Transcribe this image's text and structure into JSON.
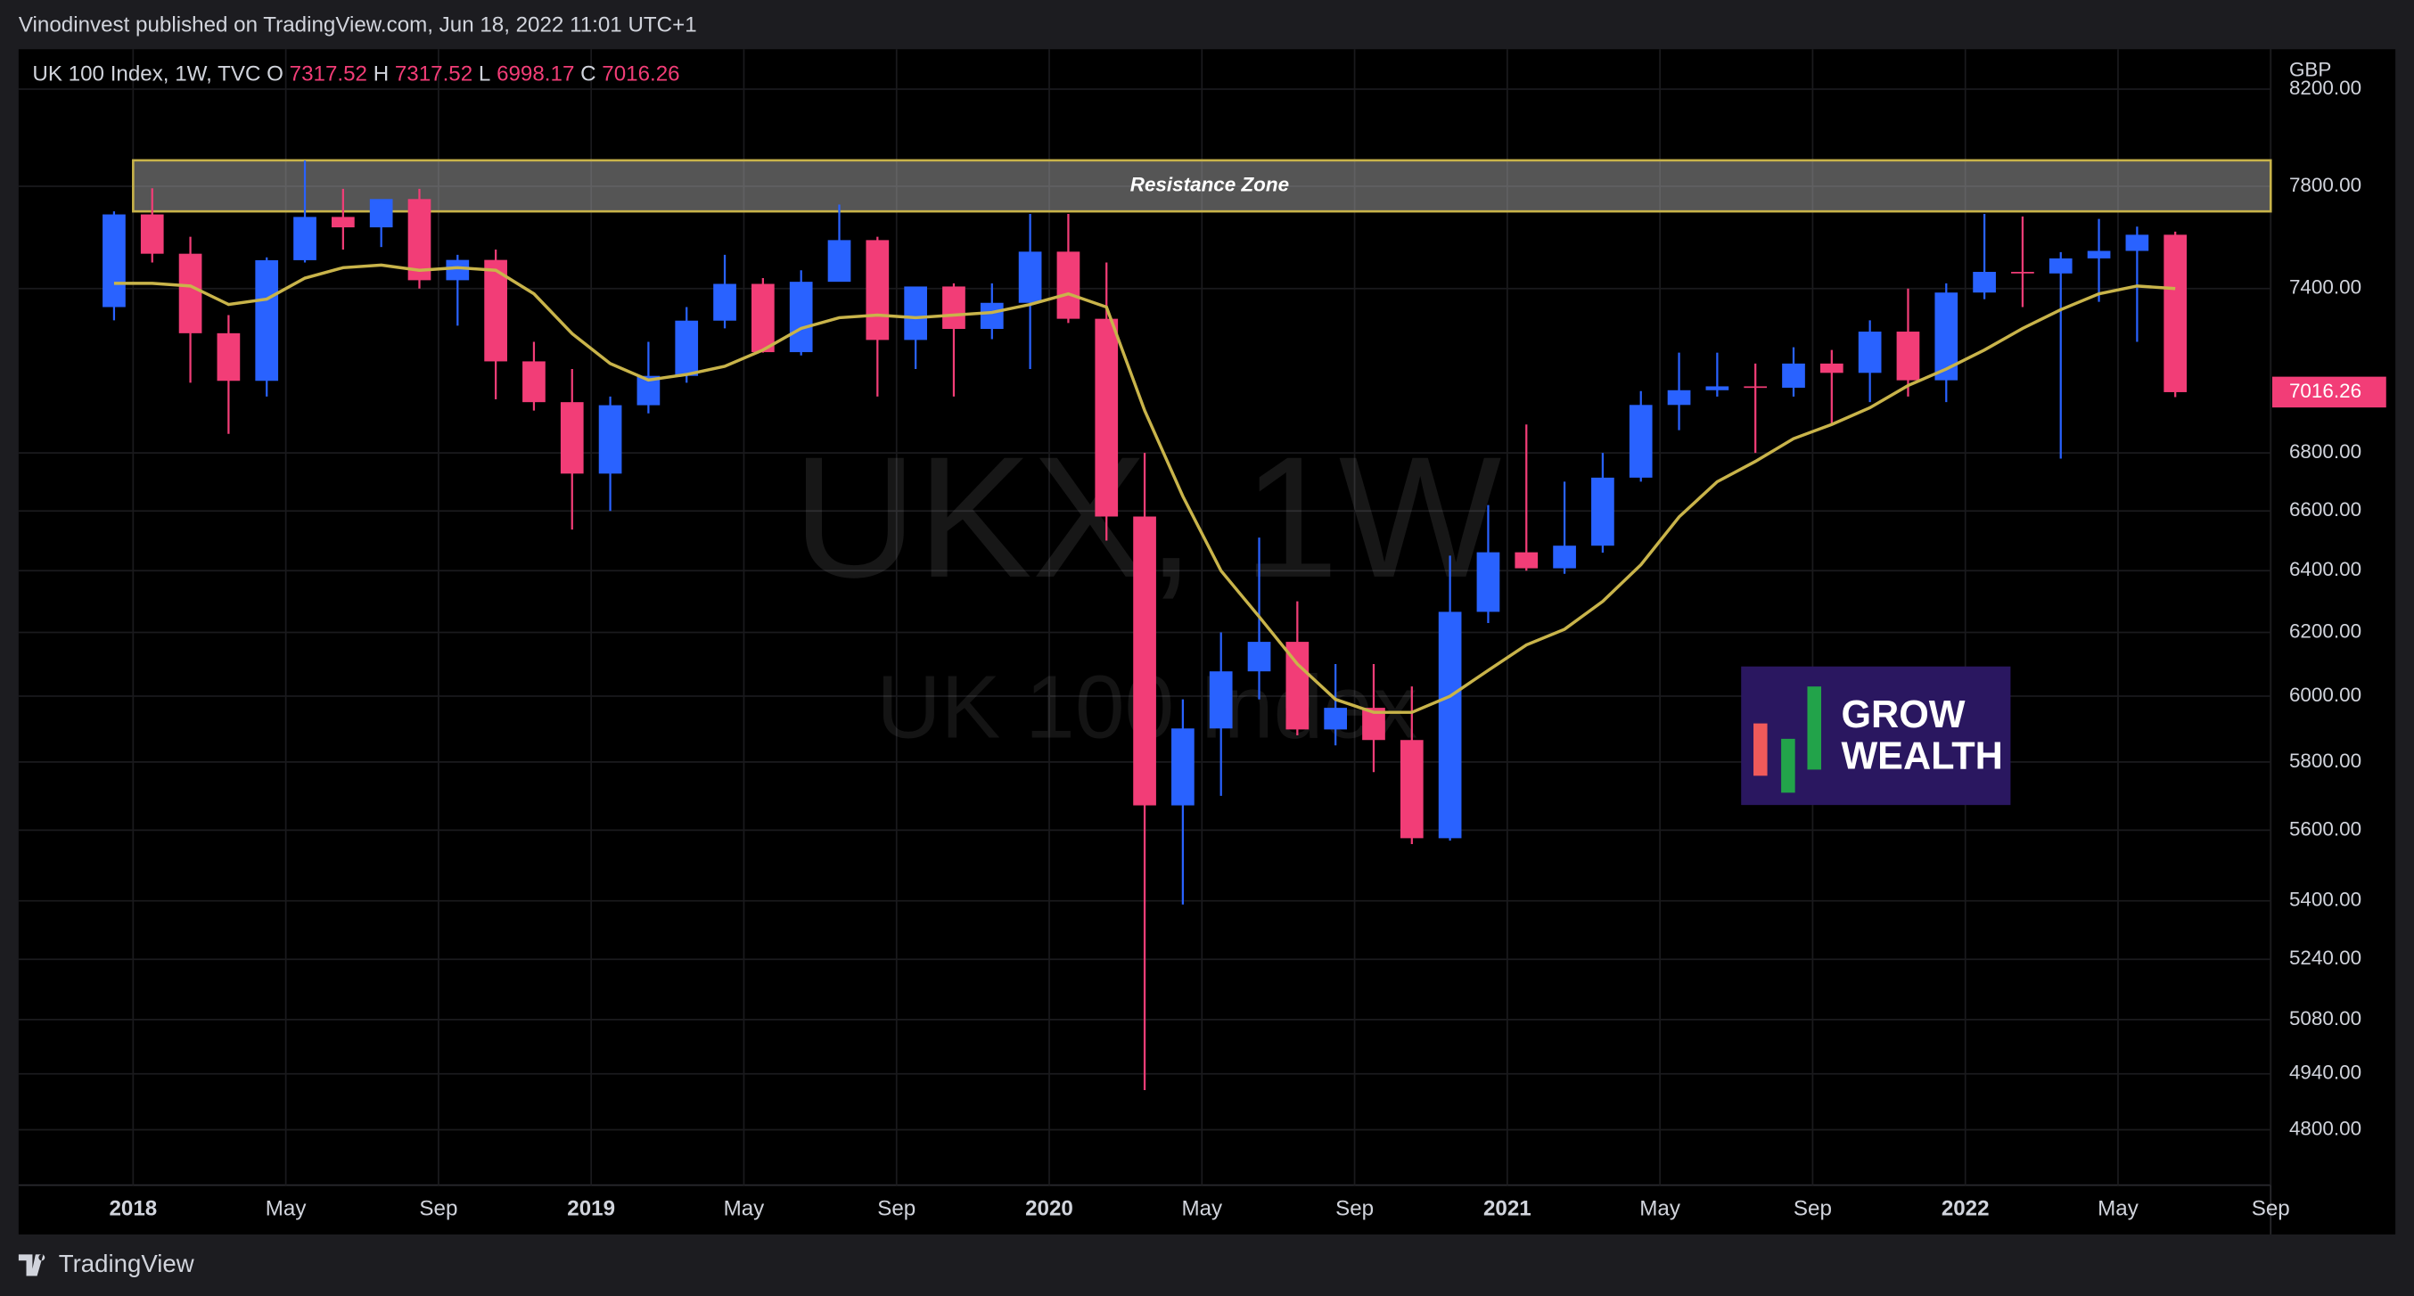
{
  "header": "Vinodinvest published on TradingView.com, Jun 18, 2022 11:01 UTC+1",
  "footer": "TradingView",
  "chart_data": {
    "type": "candlestick",
    "legend": {
      "symbol": "UK 100 Index, 1W, TVC",
      "fields": [
        {
          "label": "O",
          "value": 7317.52
        },
        {
          "label": "H",
          "value": 7317.52
        },
        {
          "label": "L",
          "value": 6998.17
        },
        {
          "label": "C",
          "value": 7016.26
        }
      ]
    },
    "watermark": {
      "symbol": "UKX, 1W",
      "name": "UK 100 Index"
    },
    "currency": "GBP",
    "price_line": {
      "value": 7016.26,
      "label": "7016.26"
    },
    "resistance_zone": {
      "label": "Resistance Zone",
      "range": [
        7700,
        7905
      ],
      "start": "2018-01"
    },
    "logo": {
      "line1": "GROW",
      "line2": "WEALTH"
    },
    "up_color": "#2962ff",
    "down_color": "#f23d77",
    "log_scale": true,
    "grid": true,
    "xlim": [
      "2017-10",
      "2022-09"
    ],
    "xticks": [
      {
        "value": "2018-01",
        "label": "2018"
      },
      {
        "value": "2018-05",
        "label": "May"
      },
      {
        "value": "2018-09",
        "label": "Sep"
      },
      {
        "value": "2019-01",
        "label": "2019"
      },
      {
        "value": "2019-05",
        "label": "May"
      },
      {
        "value": "2019-09",
        "label": "Sep"
      },
      {
        "value": "2020-01",
        "label": "2020"
      },
      {
        "value": "2020-05",
        "label": "May"
      },
      {
        "value": "2020-09",
        "label": "Sep"
      },
      {
        "value": "2021-01",
        "label": "2021"
      },
      {
        "value": "2021-05",
        "label": "May"
      },
      {
        "value": "2021-09",
        "label": "Sep"
      },
      {
        "value": "2022-01",
        "label": "2022"
      },
      {
        "value": "2022-05",
        "label": "May"
      },
      {
        "value": "2022-09",
        "label": "Sep"
      }
    ],
    "ylim": [
      4665,
      8370
    ],
    "yticks": [
      {
        "value": 4800,
        "label": "4800.00"
      },
      {
        "value": 4940,
        "label": "4940.00"
      },
      {
        "value": 5080,
        "label": "5080.00"
      },
      {
        "value": 5240,
        "label": "5240.00"
      },
      {
        "value": 5400,
        "label": "5400.00"
      },
      {
        "value": 5600,
        "label": "5600.00"
      },
      {
        "value": 5800,
        "label": "5800.00"
      },
      {
        "value": 6000,
        "label": "6000.00"
      },
      {
        "value": 6200,
        "label": "6200.00"
      },
      {
        "value": 6400,
        "label": "6400.00"
      },
      {
        "value": 6600,
        "label": "6600.00"
      },
      {
        "value": 6800,
        "label": "6800.00"
      },
      {
        "value": 7400,
        "label": "7400.00"
      },
      {
        "value": 7800,
        "label": "7800.00"
      },
      {
        "value": 8200,
        "label": "8200.00"
      }
    ],
    "x": [
      "2017-12",
      "2018-01",
      "2018-02",
      "2018-03",
      "2018-04",
      "2018-05",
      "2018-06",
      "2018-07",
      "2018-08",
      "2018-09",
      "2018-10",
      "2018-11",
      "2018-12",
      "2019-01",
      "2019-02",
      "2019-03",
      "2019-04",
      "2019-05",
      "2019-06",
      "2019-07",
      "2019-08",
      "2019-09",
      "2019-10",
      "2019-11",
      "2019-12",
      "2020-01",
      "2020-02",
      "2020-03",
      "2020-04",
      "2020-05",
      "2020-06",
      "2020-07",
      "2020-08",
      "2020-09",
      "2020-10",
      "2020-11",
      "2020-12",
      "2021-01",
      "2021-02",
      "2021-03",
      "2021-04",
      "2021-05",
      "2021-06",
      "2021-07",
      "2021-08",
      "2021-09",
      "2021-10",
      "2021-11",
      "2021-12",
      "2022-01",
      "2022-02",
      "2022-03",
      "2022-04",
      "2022-05",
      "2022-06"
    ],
    "open": [
      7330,
      7688,
      7534,
      7232,
      7057,
      7509,
      7678,
      7637,
      7749,
      7432,
      7510,
      7128,
      6980,
      6728,
      6969,
      7075,
      7279,
      7418,
      7162,
      7426,
      7587,
      7207,
      7408,
      7248,
      7346,
      7542,
      7286,
      6581,
      5672,
      5901,
      6077,
      6170,
      5898,
      5964,
      5866,
      5577,
      6266,
      6461,
      6408,
      6483,
      6714,
      6970,
      7023,
      7037,
      7032,
      7120,
      7086,
      7238,
      7059,
      7385,
      7464,
      7458,
      7516,
      7545,
      7608
    ],
    "high": [
      7700,
      7792,
      7600,
      7300,
      7520,
      7904,
      7790,
      7740,
      7790,
      7530,
      7550,
      7200,
      7100,
      7000,
      7200,
      7330,
      7530,
      7440,
      7470,
      7727,
      7600,
      7400,
      7420,
      7420,
      7690,
      7690,
      7500,
      6800,
      5990,
      6200,
      6510,
      6300,
      6100,
      6100,
      6030,
      6450,
      6620,
      6900,
      6700,
      6800,
      7020,
      7160,
      7160,
      7120,
      7180,
      7170,
      7280,
      7400,
      7420,
      7690,
      7680,
      7540,
      7670,
      7640,
      7620
    ],
    "low": [
      7280,
      7500,
      7050,
      6867,
      7000,
      7500,
      7550,
      7560,
      7400,
      7260,
      6990,
      6950,
      6537,
      6600,
      6940,
      7050,
      7250,
      7160,
      7150,
      7450,
      7000,
      7100,
      7000,
      7210,
      7100,
      7270,
      6500,
      4899,
      5390,
      5700,
      5990,
      5880,
      5850,
      5770,
      5560,
      5570,
      6230,
      6400,
      6390,
      6460,
      6700,
      6880,
      7000,
      6800,
      7000,
      6900,
      6980,
      7000,
      6980,
      7360,
      7330,
      6780,
      7350,
      7200,
      6998
    ],
    "close": [
      7688,
      7534,
      7232,
      7057,
      7509,
      7678,
      7637,
      7749,
      7432,
      7510,
      7128,
      6980,
      6728,
      6969,
      7075,
      7279,
      7418,
      7162,
      7426,
      7587,
      7207,
      7408,
      7248,
      7346,
      7542,
      7286,
      6581,
      5672,
      5901,
      6077,
      6170,
      5898,
      5964,
      5866,
      5577,
      6266,
      6461,
      6408,
      6483,
      6714,
      6970,
      7023,
      7037,
      7032,
      7120,
      7086,
      7238,
      7059,
      7385,
      7464,
      7458,
      7516,
      7545,
      7608,
      7016
    ],
    "ma": {
      "color": "#c9b44a",
      "values": [
        7420,
        7420,
        7410,
        7340,
        7360,
        7440,
        7480,
        7490,
        7470,
        7480,
        7470,
        7380,
        7230,
        7120,
        7060,
        7080,
        7110,
        7170,
        7250,
        7290,
        7300,
        7290,
        7300,
        7310,
        7340,
        7380,
        7330,
        6950,
        6650,
        6400,
        6250,
        6100,
        5990,
        5950,
        5950,
        6000,
        6080,
        6160,
        6210,
        6300,
        6420,
        6580,
        6700,
        6770,
        6850,
        6900,
        6960,
        7040,
        7100,
        7170,
        7250,
        7320,
        7380,
        7410,
        7400
      ]
    }
  }
}
